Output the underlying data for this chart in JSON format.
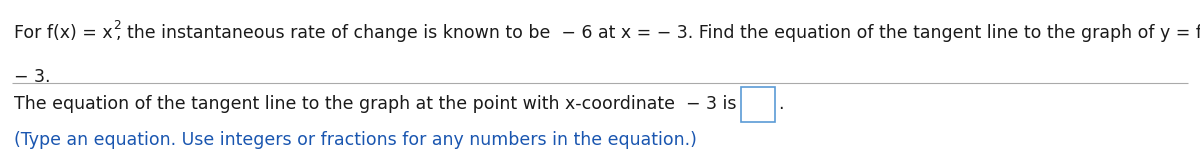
{
  "bg_color": "#ffffff",
  "text_color": "#1a1a1a",
  "blue_color": "#1a56b0",
  "separator_color": "#aaaaaa",
  "font_size": 12.5,
  "font_family": "DejaVu Sans",
  "line1_part1": "For f(x) = x",
  "superscript": "2",
  "line1_part2": ", the instantaneous rate of change is known to be  − 6 at x = − 3. Find the equation of the tangent line to the graph of y = f(x) at the point with x-coordinate",
  "line2": "− 3.",
  "answer_text": "The equation of the tangent line to the graph at the point with x-coordinate  − 3 is",
  "blue_text": "(Type an equation. Use integers or fractions for any numbers in the equation.)",
  "fig_width": 12.0,
  "fig_height": 1.58,
  "dpi": 100
}
